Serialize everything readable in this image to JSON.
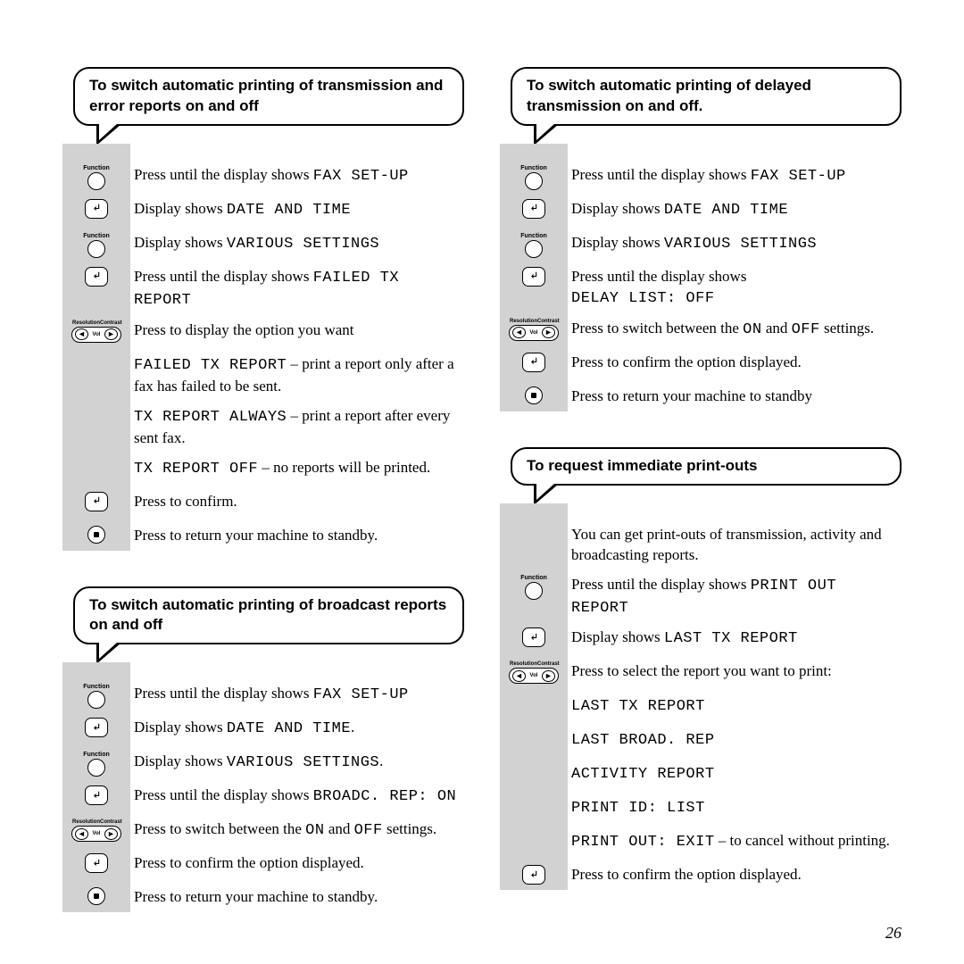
{
  "page_number": "26",
  "icon_labels": {
    "function": "Function",
    "resolution": "Resolution",
    "contrast": "Contrast",
    "vol": "Vol"
  },
  "sections": [
    {
      "title": "To switch automatic printing of transmission and error reports on and off",
      "steps": [
        {
          "icon": "function",
          "text": "Press until the display shows ",
          "mono": "FAX SET-UP"
        },
        {
          "icon": "enter",
          "text": "Display shows ",
          "mono": "DATE AND TIME"
        },
        {
          "icon": "function",
          "text": "Display shows ",
          "mono": "VARIOUS SETTINGS"
        },
        {
          "icon": "enter",
          "text": "Press until the display shows ",
          "mono": "FAILED TX REPORT"
        },
        {
          "icon": "arrows",
          "text": "Press to display the option you want"
        },
        {
          "icon": "",
          "mono_pre": "FAILED TX REPORT",
          "text": " – print a report only after a fax has failed to be sent."
        },
        {
          "icon": "",
          "mono_pre": "TX REPORT ALWAYS",
          "text": " – print a report after every sent fax."
        },
        {
          "icon": "",
          "mono_pre": "TX REPORT OFF",
          "text": " – no reports will be printed."
        },
        {
          "icon": "enter",
          "text": "Press to confirm."
        },
        {
          "icon": "stop",
          "text": "Press to return your machine to standby."
        }
      ]
    },
    {
      "title": "To switch automatic printing of broadcast reports on and off",
      "steps": [
        {
          "icon": "function",
          "text": "Press until the display shows ",
          "mono": "FAX SET-UP"
        },
        {
          "icon": "enter",
          "text": "Display shows ",
          "mono": "DATE AND TIME",
          "tail": "."
        },
        {
          "icon": "function",
          "text": "Display shows ",
          "mono": "VARIOUS SETTINGS",
          "tail": "."
        },
        {
          "icon": "enter",
          "text": "Press until the display shows ",
          "mono": "BROADC. REP: ON"
        },
        {
          "icon": "arrows",
          "text_pre": "Press to switch between the ",
          "mono_mid1": "ON",
          "text_mid": " and ",
          "mono_mid2": "OFF",
          "text_post": " settings."
        },
        {
          "icon": "enter",
          "text": "Press to confirm the option displayed."
        },
        {
          "icon": "stop",
          "text": "Press to return your machine to standby."
        }
      ]
    },
    {
      "title": "To switch automatic printing of delayed transmission on and off.",
      "steps": [
        {
          "icon": "function",
          "text": "Press until the display shows ",
          "mono": "FAX SET-UP"
        },
        {
          "icon": "enter",
          "text": "Display shows ",
          "mono": "DATE AND TIME"
        },
        {
          "icon": "function",
          "text": "Display shows ",
          "mono": "VARIOUS SETTINGS"
        },
        {
          "icon": "enter",
          "text": "Press until the display shows ",
          "mono_br": "DELAY LIST: OFF"
        },
        {
          "icon": "arrows",
          "text_pre": "Press to switch between the ",
          "mono_mid1": "ON",
          "text_mid": " and ",
          "mono_mid2": "OFF",
          "text_post": " settings."
        },
        {
          "icon": "enter",
          "text": "Press to confirm the option displayed."
        },
        {
          "icon": "stop",
          "text": "Press to return your machine to standby"
        }
      ]
    },
    {
      "title": "To request immediate print-outs",
      "steps": [
        {
          "icon": "",
          "text": "You can get print-outs of transmission, activity and broadcasting reports."
        },
        {
          "icon": "function",
          "text": "Press until the display shows ",
          "mono": "PRINT OUT REPORT"
        },
        {
          "icon": "enter",
          "text": "Display shows ",
          "mono": "LAST TX REPORT"
        },
        {
          "icon": "arrows",
          "text": "Press to select the report you want to print:"
        },
        {
          "icon": "",
          "mono_pre": "LAST TX REPORT"
        },
        {
          "icon": "",
          "mono_pre": "LAST BROAD. REP"
        },
        {
          "icon": "",
          "mono_pre": "ACTIVITY REPORT"
        },
        {
          "icon": "",
          "mono_pre": "PRINT ID: LIST"
        },
        {
          "icon": "",
          "mono_pre": "PRINT OUT: EXIT",
          "text": " – to cancel without printing."
        },
        {
          "icon": "enter",
          "text": "Press to confirm the option displayed."
        }
      ]
    }
  ]
}
